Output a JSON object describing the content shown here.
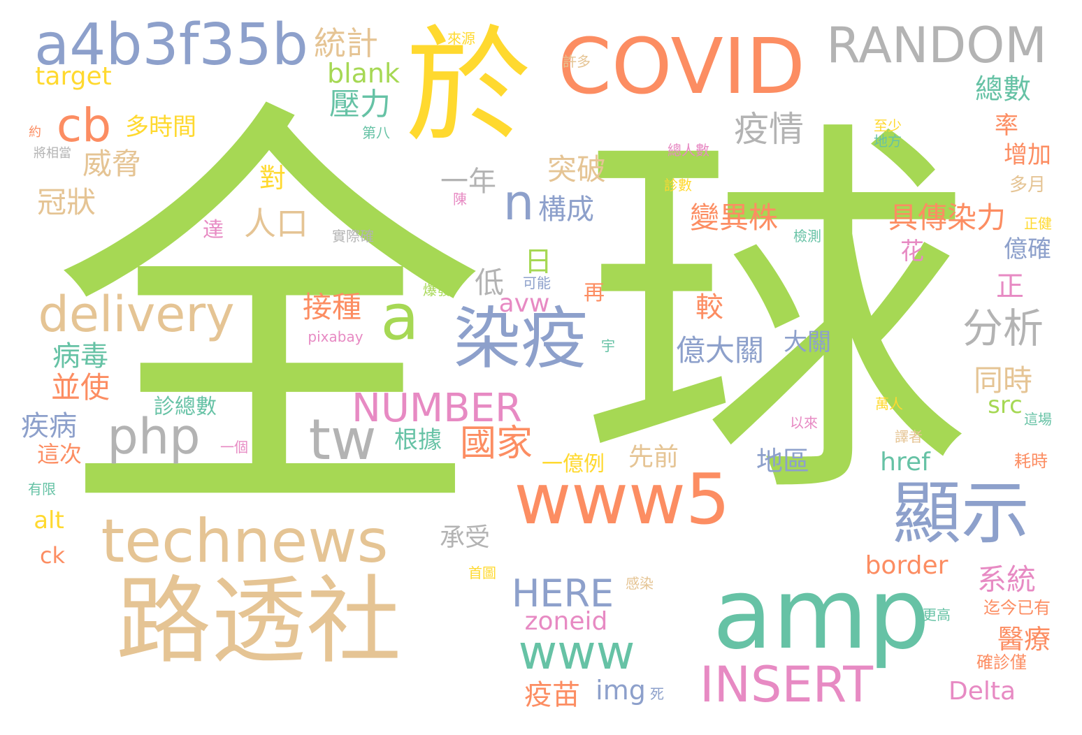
{
  "palette": {
    "green": "#a6d854",
    "teal": "#66c2a5",
    "orange": "#fc8d62",
    "blue": "#8da0cb",
    "pink": "#e78ac3",
    "yellow": "#ffd92f",
    "tan": "#e5c494",
    "gray": "#b3b3b3"
  },
  "words": [
    {
      "text": "全",
      "color": "green"
    },
    {
      "text": "球",
      "color": "green"
    },
    {
      "text": "於",
      "color": "yellow"
    },
    {
      "text": "COVID",
      "color": "orange"
    },
    {
      "text": "RANDOM",
      "color": "gray"
    },
    {
      "text": "a4b3f35b",
      "color": "blue"
    },
    {
      "text": "統計",
      "color": "tan"
    },
    {
      "text": "來源",
      "color": "yellow"
    },
    {
      "text": "target",
      "color": "yellow"
    },
    {
      "text": "blank",
      "color": "green"
    },
    {
      "text": "許多",
      "color": "tan"
    },
    {
      "text": "cb",
      "color": "orange"
    },
    {
      "text": "壓力",
      "color": "teal"
    },
    {
      "text": "多時間",
      "color": "yellow"
    },
    {
      "text": "總數",
      "color": "teal"
    },
    {
      "text": "約",
      "color": "orange"
    },
    {
      "text": "第八",
      "color": "teal"
    },
    {
      "text": "疫情",
      "color": "gray"
    },
    {
      "text": "至少",
      "color": "yellow"
    },
    {
      "text": "率",
      "color": "orange"
    },
    {
      "text": "將相當",
      "color": "gray"
    },
    {
      "text": "威脅",
      "color": "tan"
    },
    {
      "text": "地方",
      "color": "teal"
    },
    {
      "text": "總人數",
      "color": "pink"
    },
    {
      "text": "突破",
      "color": "tan"
    },
    {
      "text": "增加",
      "color": "orange"
    },
    {
      "text": "一年",
      "color": "gray"
    },
    {
      "text": "對",
      "color": "yellow"
    },
    {
      "text": "冠狀",
      "color": "tan"
    },
    {
      "text": "診數",
      "color": "yellow"
    },
    {
      "text": "多月",
      "color": "tan"
    },
    {
      "text": "n",
      "color": "blue"
    },
    {
      "text": "陳",
      "color": "pink"
    },
    {
      "text": "構成",
      "color": "blue"
    },
    {
      "text": "人口",
      "color": "tan"
    },
    {
      "text": "變異株",
      "color": "orange"
    },
    {
      "text": "具傳染力",
      "color": "orange"
    },
    {
      "text": "正健",
      "color": "yellow"
    },
    {
      "text": "達",
      "color": "pink"
    },
    {
      "text": "實際確",
      "color": "gray"
    },
    {
      "text": "檢測",
      "color": "teal"
    },
    {
      "text": "億確",
      "color": "blue"
    },
    {
      "text": "花",
      "color": "pink"
    },
    {
      "text": "日",
      "color": "green"
    },
    {
      "text": "低",
      "color": "gray"
    },
    {
      "text": "爆發",
      "color": "green"
    },
    {
      "text": "可能",
      "color": "blue"
    },
    {
      "text": "正",
      "color": "pink"
    },
    {
      "text": "delivery",
      "color": "tan"
    },
    {
      "text": "a",
      "color": "green"
    },
    {
      "text": "接種",
      "color": "orange"
    },
    {
      "text": "avw",
      "color": "pink"
    },
    {
      "text": "再",
      "color": "orange"
    },
    {
      "text": "較",
      "color": "orange"
    },
    {
      "text": "分析",
      "color": "gray"
    },
    {
      "text": "染疫",
      "color": "blue"
    },
    {
      "text": "病毒",
      "color": "teal"
    },
    {
      "text": "億大關",
      "color": "blue"
    },
    {
      "text": "大關",
      "color": "blue"
    },
    {
      "text": "pixabay",
      "color": "pink"
    },
    {
      "text": "宇",
      "color": "teal"
    },
    {
      "text": "並使",
      "color": "orange"
    },
    {
      "text": "同時",
      "color": "tan"
    },
    {
      "text": "NUMBER",
      "color": "pink"
    },
    {
      "text": "診總數",
      "color": "teal"
    },
    {
      "text": "src",
      "color": "green"
    },
    {
      "text": "疾病",
      "color": "blue"
    },
    {
      "text": "php",
      "color": "gray"
    },
    {
      "text": "tw",
      "color": "gray"
    },
    {
      "text": "國家",
      "color": "orange"
    },
    {
      "text": "根據",
      "color": "teal"
    },
    {
      "text": "以來",
      "color": "pink"
    },
    {
      "text": "萬人",
      "color": "yellow"
    },
    {
      "text": "這場",
      "color": "teal"
    },
    {
      "text": "這次",
      "color": "orange"
    },
    {
      "text": "一個",
      "color": "pink"
    },
    {
      "text": "先前",
      "color": "tan"
    },
    {
      "text": "譯者",
      "color": "tan"
    },
    {
      "text": "地區",
      "color": "blue"
    },
    {
      "text": "一億例",
      "color": "yellow"
    },
    {
      "text": "href",
      "color": "teal"
    },
    {
      "text": "耗時",
      "color": "orange"
    },
    {
      "text": "有限",
      "color": "teal"
    },
    {
      "text": "www5",
      "color": "orange"
    },
    {
      "text": "顯示",
      "color": "blue"
    },
    {
      "text": "alt",
      "color": "yellow"
    },
    {
      "text": "technews",
      "color": "tan"
    },
    {
      "text": "承受",
      "color": "gray"
    },
    {
      "text": "ck",
      "color": "orange"
    },
    {
      "text": "border",
      "color": "orange"
    },
    {
      "text": "首圖",
      "color": "yellow"
    },
    {
      "text": "感染",
      "color": "tan"
    },
    {
      "text": "HERE",
      "color": "blue"
    },
    {
      "text": "系統",
      "color": "pink"
    },
    {
      "text": "迄今已有",
      "color": "orange"
    },
    {
      "text": "更高",
      "color": "teal"
    },
    {
      "text": "路透社",
      "color": "tan"
    },
    {
      "text": "amp",
      "color": "teal"
    },
    {
      "text": "zoneid",
      "color": "pink"
    },
    {
      "text": "www",
      "color": "teal"
    },
    {
      "text": "醫療",
      "color": "orange"
    },
    {
      "text": "確診僅",
      "color": "orange"
    },
    {
      "text": "INSERT",
      "color": "pink"
    },
    {
      "text": "疫苗",
      "color": "orange"
    },
    {
      "text": "img",
      "color": "blue"
    },
    {
      "text": "死",
      "color": "blue"
    },
    {
      "text": "Delta",
      "color": "pink"
    }
  ]
}
